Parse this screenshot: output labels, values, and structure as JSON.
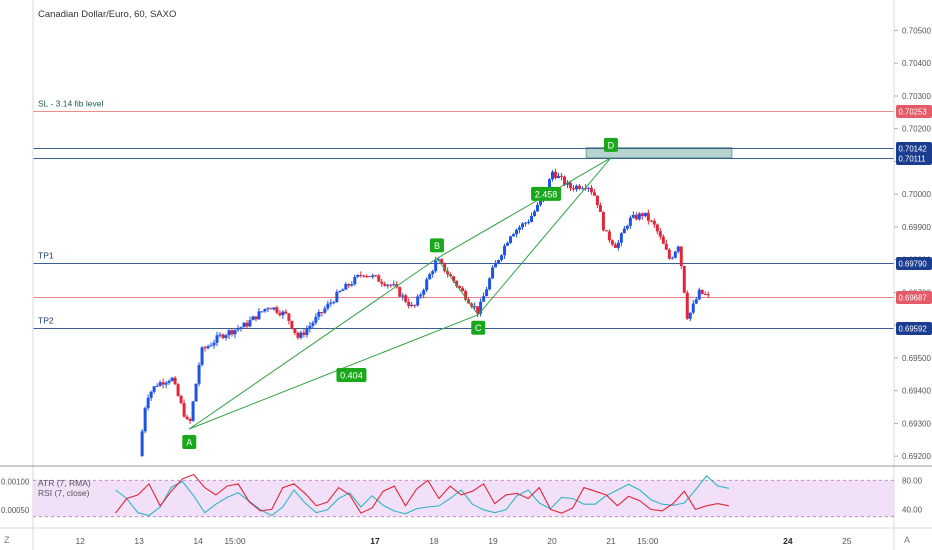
{
  "header": {
    "title": "Canadian Dollar/Euro, 60, SAXO"
  },
  "colors": {
    "up": "#1e53e5",
    "down": "#e0263a",
    "pattern": "#2ea043",
    "label_bg": "#18a81a",
    "sl": "#f28c8c",
    "tp": "#3b5f91",
    "zone": "#b7d3cf",
    "last": "#e45a66",
    "atr": "#2fb6c4",
    "rsi": "#e0263a",
    "rsi_bg": "#ecd3f5"
  },
  "levels": [
    {
      "id": "sl",
      "label": "SL - 3.14 fib level",
      "value": 0.70253,
      "price_tag": "0.70253",
      "tag_color": "#e45a66"
    },
    {
      "id": "zone_top",
      "label": "",
      "value": 0.70142,
      "price_tag": "0.70142",
      "tag_color": "#1a3d8f"
    },
    {
      "id": "zone_bottom",
      "label": "",
      "value": 0.70111,
      "price_tag": "0.70111",
      "tag_color": "#1a3d8f"
    },
    {
      "id": "tp1",
      "label": "TP1",
      "value": 0.6979,
      "price_tag": "0.69790",
      "tag_color": "#1a3d8f"
    },
    {
      "id": "last",
      "label": "",
      "value": 0.69687,
      "price_tag": "0.69687",
      "tag_color": "#e45a66"
    },
    {
      "id": "tp2",
      "label": "TP2",
      "value": 0.69592,
      "price_tag": "0.69592",
      "tag_color": "#1a3d8f"
    }
  ],
  "pattern": {
    "points": [
      {
        "label": "A",
        "day": 13.85,
        "price": 0.69283
      },
      {
        "label": "B",
        "day": 18.05,
        "price": 0.69804
      },
      {
        "label": "C",
        "day": 18.75,
        "price": 0.69632
      },
      {
        "label": "D",
        "day": 21.0,
        "price": 0.70111
      }
    ],
    "ratios": [
      {
        "label": "0.404",
        "day": 16.6,
        "price": 0.69448
      },
      {
        "label": "2.458",
        "day": 19.9,
        "price": 0.70001
      }
    ]
  },
  "chart_data": [
    {
      "type": "candlestick",
      "title": "Canadian Dollar/Euro, 60, SAXO",
      "xlabel": "",
      "ylabel": "",
      "xlim": [
        11.2,
        25.8
      ],
      "ylim": [
        0.6917,
        0.70593
      ],
      "x_ticks": [
        {
          "day": 12,
          "label": "12"
        },
        {
          "day": 13,
          "label": "13"
        },
        {
          "day": 14,
          "label": "14"
        },
        {
          "day": 14.625,
          "label": "15:00"
        },
        {
          "day": 17,
          "label": "17"
        },
        {
          "day": 18,
          "label": "18"
        },
        {
          "day": 19,
          "label": "19"
        },
        {
          "day": 20,
          "label": "20"
        },
        {
          "day": 21,
          "label": "21"
        },
        {
          "day": 21.625,
          "label": "15:00"
        },
        {
          "day": 24,
          "label": "24"
        },
        {
          "day": 25,
          "label": "25"
        }
      ],
      "y_ticks": [
        "0.70500",
        "0.70400",
        "0.70300",
        "0.70200",
        "0.70100",
        "0.70000",
        "0.69900",
        "0.69800",
        "0.69700",
        "0.69600",
        "0.69500",
        "0.69400",
        "0.69300",
        "0.69200"
      ],
      "anchors": [
        {
          "day": 13.0,
          "price": 0.692
        },
        {
          "day": 13.12,
          "price": 0.6938
        },
        {
          "day": 13.3,
          "price": 0.6942
        },
        {
          "day": 13.55,
          "price": 0.6944
        },
        {
          "day": 13.8,
          "price": 0.6931
        },
        {
          "day": 13.85,
          "price": 0.6929
        },
        {
          "day": 14.05,
          "price": 0.6952
        },
        {
          "day": 14.4,
          "price": 0.6957
        },
        {
          "day": 14.8,
          "price": 0.696
        },
        {
          "day": 15.2,
          "price": 0.6966
        },
        {
          "day": 15.5,
          "price": 0.6963
        },
        {
          "day": 15.7,
          "price": 0.6956
        },
        {
          "day": 16.1,
          "price": 0.6964
        },
        {
          "day": 16.4,
          "price": 0.697
        },
        {
          "day": 16.8,
          "price": 0.6976
        },
        {
          "day": 17.3,
          "price": 0.6972
        },
        {
          "day": 17.65,
          "price": 0.6965
        },
        {
          "day": 18.05,
          "price": 0.698
        },
        {
          "day": 18.4,
          "price": 0.6972
        },
        {
          "day": 18.75,
          "price": 0.6964
        },
        {
          "day": 19.0,
          "price": 0.6977
        },
        {
          "day": 19.3,
          "price": 0.6988
        },
        {
          "day": 19.6,
          "price": 0.6992
        },
        {
          "day": 19.9,
          "price": 0.7
        },
        {
          "day": 20.0,
          "price": 0.7007
        },
        {
          "day": 20.3,
          "price": 0.7002
        },
        {
          "day": 20.6,
          "price": 0.7003
        },
        {
          "day": 20.75,
          "price": 0.6999
        },
        {
          "day": 20.9,
          "price": 0.6988
        },
        {
          "day": 21.1,
          "price": 0.6984
        },
        {
          "day": 21.3,
          "price": 0.6992
        },
        {
          "day": 21.55,
          "price": 0.6994
        },
        {
          "day": 21.75,
          "price": 0.699
        },
        {
          "day": 22.0,
          "price": 0.698
        },
        {
          "day": 22.15,
          "price": 0.6985
        },
        {
          "day": 22.3,
          "price": 0.6962
        },
        {
          "day": 22.5,
          "price": 0.697
        },
        {
          "day": 22.65,
          "price": 0.69687
        }
      ]
    },
    {
      "type": "line",
      "title": "",
      "legend": [
        "ATR (7, RMA)",
        "RSI (7, close)"
      ],
      "y_ticks_left": [
        "0.00100",
        "0.00050"
      ],
      "y_ticks_right": [
        "80.00",
        "40.00"
      ],
      "rsi_band": [
        30,
        80
      ],
      "series": [
        {
          "name": "ATR (7, RMA)",
          "values": [
            0.00085,
            0.0007,
            0.00045,
            0.0004,
            0.00055,
            0.0009,
            0.001,
            0.00075,
            0.00045,
            0.0006,
            0.00072,
            0.0008,
            0.00065,
            0.0005,
            0.0004,
            0.00055,
            0.00085,
            0.00062,
            0.00045,
            0.0005,
            0.0007,
            0.0008,
            0.00055,
            0.00075,
            0.00058,
            0.00048,
            0.00043,
            0.00052,
            0.00055,
            0.00057,
            0.0007,
            0.00085,
            0.0006,
            0.0005,
            0.00045,
            0.0005,
            0.00075,
            0.00085,
            0.00062,
            0.00052,
            0.00072,
            0.0007,
            0.0006,
            0.0006,
            0.00075,
            0.00085,
            0.00095,
            0.00085,
            0.00068,
            0.0006,
            0.00058,
            0.00062,
            0.00085,
            0.0011,
            0.00092,
            0.00088
          ]
        },
        {
          "name": "RSI (7, close)",
          "values": [
            35,
            55,
            60,
            75,
            45,
            65,
            82,
            88,
            70,
            60,
            72,
            75,
            50,
            38,
            40,
            70,
            75,
            62,
            45,
            50,
            70,
            60,
            35,
            42,
            65,
            72,
            45,
            68,
            80,
            55,
            72,
            60,
            65,
            75,
            48,
            60,
            62,
            55,
            70,
            40,
            35,
            42,
            70,
            65,
            60,
            45,
            58,
            52,
            40,
            38,
            48,
            65,
            40,
            45,
            48,
            45
          ]
        }
      ]
    }
  ],
  "axis_corner": {
    "left": "Z",
    "right": "A"
  }
}
